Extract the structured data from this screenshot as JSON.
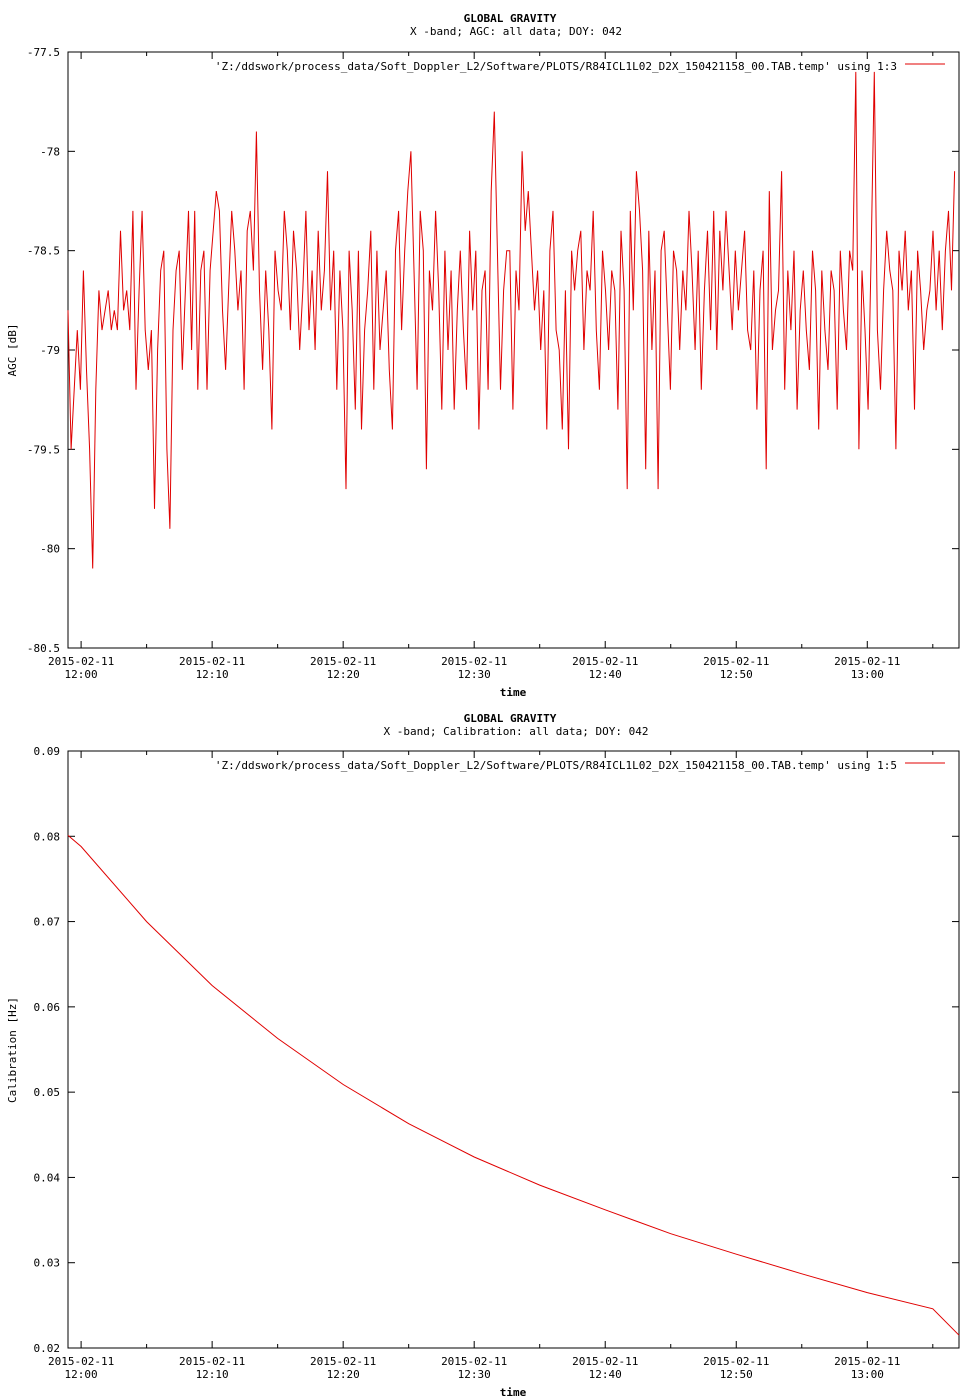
{
  "chart_data": [
    {
      "type": "line",
      "title": "GLOBAL GRAVITY",
      "subtitle": "X -band; AGC: all data; DOY: 042",
      "xlabel": "time",
      "ylabel": "AGC [dB]",
      "xlim": [
        "2015-02-11 11:59:00",
        "2015-02-11 13:07:00"
      ],
      "ylim": [
        -80.5,
        -77.5
      ],
      "xticks": [
        {
          "date": "2015-02-11",
          "time": "12:00",
          "at": "2015-02-11 12:00:00"
        },
        {
          "date": "2015-02-11",
          "time": "12:10",
          "at": "2015-02-11 12:10:00"
        },
        {
          "date": "2015-02-11",
          "time": "12:20",
          "at": "2015-02-11 12:20:00"
        },
        {
          "date": "2015-02-11",
          "time": "12:30",
          "at": "2015-02-11 12:30:00"
        },
        {
          "date": "2015-02-11",
          "time": "12:40",
          "at": "2015-02-11 12:40:00"
        },
        {
          "date": "2015-02-11",
          "time": "12:50",
          "at": "2015-02-11 12:50:00"
        },
        {
          "date": "2015-02-11",
          "time": "13:00",
          "at": "2015-02-11 13:00:00"
        }
      ],
      "yticks": [
        "-77.5",
        "-78",
        "-78.5",
        "-79",
        "-79.5",
        "-80",
        "-80.5"
      ],
      "legend_position": "top-right",
      "grid": false,
      "series": [
        {
          "name": "'Z:/ddswork/process_data/Soft_Doppler_L2/Software/PLOTS/R84ICL1L02_D2X_150421158_00.TAB.temp' using 1:3",
          "color": "#e00000",
          "x_start": "2015-02-11 11:59:00",
          "x_end": "2015-02-11 13:06:40",
          "values": [
            -78.8,
            -79.5,
            -79.2,
            -78.9,
            -79.2,
            -78.6,
            -79.1,
            -79.5,
            -80.1,
            -79.2,
            -78.7,
            -78.9,
            -78.8,
            -78.7,
            -78.9,
            -78.8,
            -78.9,
            -78.4,
            -78.8,
            -78.7,
            -78.9,
            -78.3,
            -79.2,
            -78.7,
            -78.3,
            -78.9,
            -79.1,
            -78.9,
            -79.8,
            -79.0,
            -78.6,
            -78.5,
            -79.5,
            -79.9,
            -78.9,
            -78.6,
            -78.5,
            -79.1,
            -78.7,
            -78.3,
            -79.0,
            -78.3,
            -79.2,
            -78.6,
            -78.5,
            -79.2,
            -78.6,
            -78.4,
            -78.2,
            -78.3,
            -78.8,
            -79.1,
            -78.7,
            -78.3,
            -78.5,
            -78.8,
            -78.6,
            -79.2,
            -78.4,
            -78.3,
            -78.6,
            -77.9,
            -78.7,
            -79.1,
            -78.6,
            -78.9,
            -79.4,
            -78.5,
            -78.7,
            -78.8,
            -78.3,
            -78.5,
            -78.9,
            -78.4,
            -78.6,
            -79.0,
            -78.7,
            -78.3,
            -78.9,
            -78.6,
            -79.0,
            -78.4,
            -78.8,
            -78.6,
            -78.1,
            -78.8,
            -78.5,
            -79.2,
            -78.6,
            -78.9,
            -79.7,
            -78.5,
            -78.8,
            -79.3,
            -78.5,
            -79.4,
            -78.9,
            -78.7,
            -78.4,
            -79.2,
            -78.5,
            -79.0,
            -78.8,
            -78.6,
            -79.1,
            -79.4,
            -78.5,
            -78.3,
            -78.9,
            -78.5,
            -78.2,
            -78.0,
            -78.6,
            -79.2,
            -78.3,
            -78.5,
            -79.6,
            -78.6,
            -78.8,
            -78.3,
            -78.7,
            -79.3,
            -78.5,
            -79.0,
            -78.6,
            -79.3,
            -78.8,
            -78.5,
            -78.9,
            -79.2,
            -78.4,
            -78.8,
            -78.5,
            -79.4,
            -78.7,
            -78.6,
            -79.2,
            -78.2,
            -77.8,
            -78.5,
            -79.2,
            -78.7,
            -78.5,
            -78.5,
            -79.3,
            -78.6,
            -78.8,
            -78.0,
            -78.4,
            -78.2,
            -78.5,
            -78.8,
            -78.6,
            -79.0,
            -78.7,
            -79.4,
            -78.5,
            -78.3,
            -78.9,
            -79.0,
            -79.4,
            -78.7,
            -79.5,
            -78.5,
            -78.7,
            -78.5,
            -78.4,
            -79.0,
            -78.6,
            -78.7,
            -78.3,
            -78.9,
            -79.2,
            -78.5,
            -78.7,
            -79.0,
            -78.6,
            -78.7,
            -79.3,
            -78.4,
            -78.7,
            -79.7,
            -78.3,
            -78.8,
            -78.1,
            -78.3,
            -78.6,
            -79.6,
            -78.4,
            -79.0,
            -78.6,
            -79.7,
            -78.5,
            -78.4,
            -78.8,
            -79.2,
            -78.5,
            -78.6,
            -79.0,
            -78.6,
            -78.8,
            -78.3,
            -78.6,
            -79.0,
            -78.5,
            -79.2,
            -78.7,
            -78.4,
            -78.9,
            -78.3,
            -79.0,
            -78.4,
            -78.7,
            -78.3,
            -78.6,
            -78.9,
            -78.5,
            -78.8,
            -78.6,
            -78.4,
            -78.9,
            -79.0,
            -78.6,
            -79.3,
            -78.7,
            -78.5,
            -79.6,
            -78.2,
            -79.0,
            -78.8,
            -78.7,
            -78.1,
            -79.2,
            -78.6,
            -78.9,
            -78.5,
            -79.3,
            -78.8,
            -78.6,
            -78.9,
            -79.1,
            -78.5,
            -78.7,
            -79.4,
            -78.6,
            -78.9,
            -79.1,
            -78.6,
            -78.7,
            -79.3,
            -78.5,
            -78.8,
            -79.0,
            -78.5,
            -78.6,
            -77.6,
            -79.5,
            -78.6,
            -78.9,
            -79.3,
            -78.5,
            -77.6,
            -78.9,
            -79.2,
            -78.7,
            -78.4,
            -78.6,
            -78.7,
            -79.5,
            -78.5,
            -78.7,
            -78.4,
            -78.8,
            -78.6,
            -79.3,
            -78.5,
            -78.7,
            -79.0,
            -78.8,
            -78.7,
            -78.4,
            -78.8,
            -78.5,
            -78.9,
            -78.5,
            -78.3,
            -78.7,
            -78.1
          ]
        }
      ]
    },
    {
      "type": "line",
      "title": "GLOBAL GRAVITY",
      "subtitle": "X -band; Calibration: all data; DOY: 042",
      "xlabel": "time",
      "ylabel": "Calibration [Hz]",
      "xlim": [
        "2015-02-11 11:59:00",
        "2015-02-11 13:07:00"
      ],
      "ylim": [
        0.02,
        0.09
      ],
      "xticks": [
        {
          "date": "2015-02-11",
          "time": "12:00",
          "at": "2015-02-11 12:00:00"
        },
        {
          "date": "2015-02-11",
          "time": "12:10",
          "at": "2015-02-11 12:10:00"
        },
        {
          "date": "2015-02-11",
          "time": "12:20",
          "at": "2015-02-11 12:20:00"
        },
        {
          "date": "2015-02-11",
          "time": "12:30",
          "at": "2015-02-11 12:30:00"
        },
        {
          "date": "2015-02-11",
          "time": "12:40",
          "at": "2015-02-11 12:40:00"
        },
        {
          "date": "2015-02-11",
          "time": "12:50",
          "at": "2015-02-11 12:50:00"
        },
        {
          "date": "2015-02-11",
          "time": "13:00",
          "at": "2015-02-11 13:00:00"
        }
      ],
      "yticks": [
        "0.09",
        "0.08",
        "0.07",
        "0.06",
        "0.05",
        "0.04",
        "0.03",
        "0.02"
      ],
      "legend_position": "top-right",
      "grid": false,
      "series": [
        {
          "name": "'Z:/ddswork/process_data/Soft_Doppler_L2/Software/PLOTS/R84ICL1L02_D2X_150421158_00.TAB.temp' using 1:5",
          "color": "#e00000",
          "x": [
            "2015-02-11 11:59:00",
            "2015-02-11 12:00:00",
            "2015-02-11 12:05:00",
            "2015-02-11 12:10:00",
            "2015-02-11 12:15:00",
            "2015-02-11 12:20:00",
            "2015-02-11 12:25:00",
            "2015-02-11 12:30:00",
            "2015-02-11 12:35:00",
            "2015-02-11 12:40:00",
            "2015-02-11 12:45:00",
            "2015-02-11 12:50:00",
            "2015-02-11 12:55:00",
            "2015-02-11 13:00:00",
            "2015-02-11 13:05:00",
            "2015-02-11 13:07:00"
          ],
          "values": [
            0.0801,
            0.0788,
            0.07,
            0.0625,
            0.0563,
            0.0509,
            0.0463,
            0.0424,
            0.0391,
            0.0362,
            0.0334,
            0.031,
            0.0287,
            0.0265,
            0.0246,
            0.0215
          ]
        }
      ]
    }
  ]
}
